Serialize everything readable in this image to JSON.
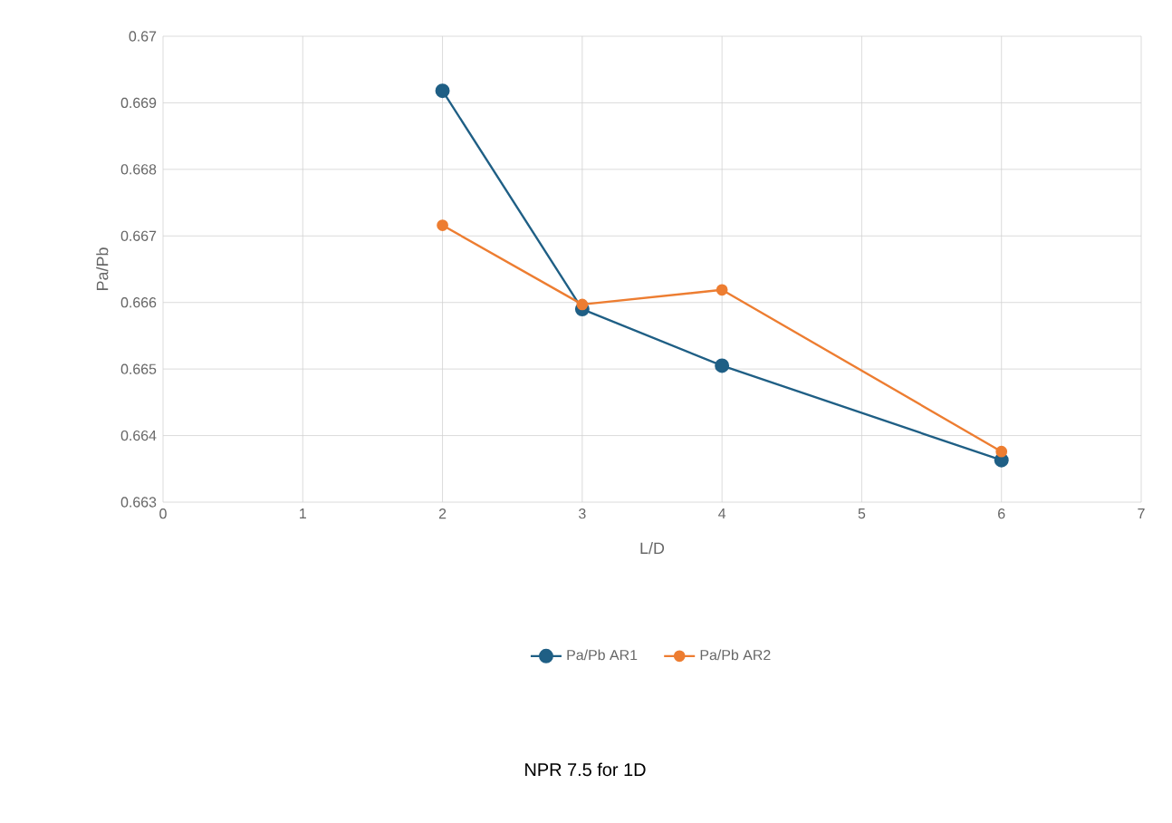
{
  "chart_data": {
    "type": "line",
    "xlabel": "L/D",
    "ylabel": "Pa/Pb",
    "annotations": [
      "NPR 7.5 for 1D"
    ],
    "xlim": [
      0,
      7
    ],
    "xticks": [
      0,
      1,
      2,
      3,
      4,
      5,
      6,
      7
    ],
    "ylim": [
      0.663,
      0.67
    ],
    "yticks": [
      0.663,
      0.664,
      0.665,
      0.666,
      0.667,
      0.668,
      0.669,
      0.67
    ],
    "x": [
      2,
      3,
      4,
      6
    ],
    "series": [
      {
        "name": "Pa/Pb AR1",
        "color": "#1f5f85",
        "values": [
          0.66918,
          0.6659,
          0.66505,
          0.66363
        ]
      },
      {
        "name": "Pa/Pb AR2",
        "color": "#ed7d31",
        "values": [
          0.66716,
          0.66597,
          0.66619,
          0.66376
        ]
      }
    ],
    "grid": true,
    "legend": "bottom",
    "marker": "circle",
    "line_style": "solid"
  }
}
